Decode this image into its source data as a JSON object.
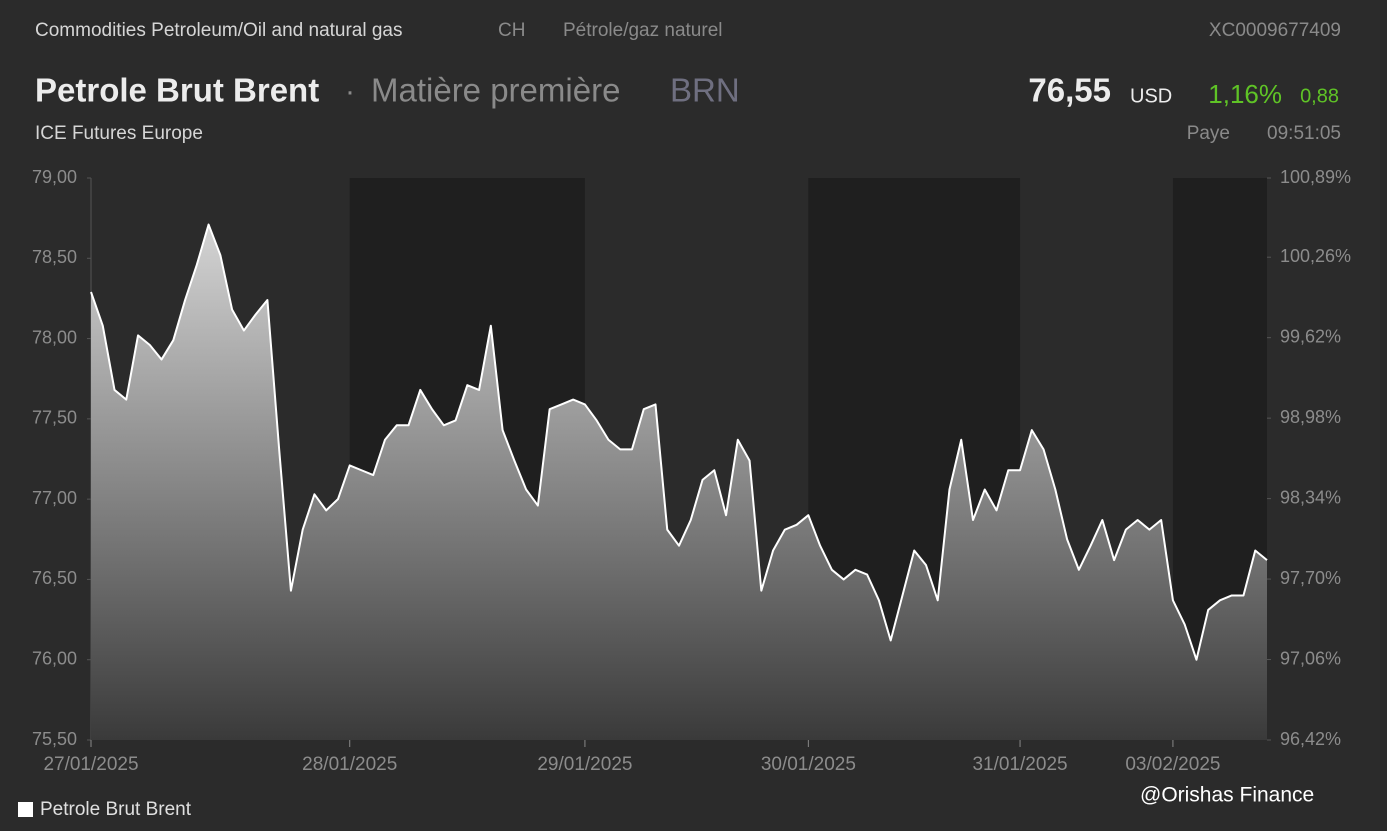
{
  "header": {
    "category": "Commodities Petroleum/Oil and natural gas",
    "country": "CH",
    "category_fr": "Pétrole/gaz naturel",
    "isin": "XC0009677409",
    "separator": "·",
    "asset_type": "Matière première",
    "symbol": "BRN",
    "price": "76,55",
    "currency": "USD",
    "change_pct": "1,16%",
    "change": "0,88",
    "exchange": "ICE Futures Europe",
    "status": "Paye",
    "time": "09:51:05",
    "watermark": "@Orishas Finance"
  },
  "chart_data": {
    "type": "area",
    "title": "Petrole Brut Brent",
    "x": [
      0,
      1,
      2,
      3,
      4,
      5,
      6,
      7,
      8,
      9,
      10,
      11,
      12,
      13,
      14,
      15,
      16,
      17,
      18,
      19,
      20,
      21,
      22,
      23,
      24,
      25,
      26,
      27,
      28,
      29,
      30,
      31,
      32,
      33,
      34,
      35,
      36,
      37,
      38,
      39,
      40,
      41,
      42,
      43,
      44,
      45,
      46,
      47,
      48,
      49,
      50,
      51,
      52,
      53,
      54,
      55,
      56,
      57,
      58,
      59,
      60,
      61,
      62,
      63,
      64,
      65,
      66,
      67,
      68,
      69,
      70,
      71,
      72,
      73,
      74,
      75,
      76,
      77,
      78,
      79,
      80,
      81,
      82,
      83,
      84,
      85,
      86,
      87,
      88,
      89,
      90,
      91,
      92,
      93,
      94,
      95,
      96,
      97,
      98,
      99,
      100
    ],
    "series": [
      {
        "name": "Petrole Brut Brent",
        "color": "#ffffff",
        "values": [
          78.29,
          78.08,
          77.68,
          77.62,
          78.02,
          77.96,
          77.87,
          77.99,
          78.24,
          78.46,
          78.71,
          78.52,
          78.18,
          78.05,
          78.15,
          78.24,
          77.31,
          76.43,
          76.81,
          77.03,
          76.93,
          77.0,
          77.21,
          77.18,
          77.15,
          77.37,
          77.46,
          77.46,
          77.68,
          77.56,
          77.46,
          77.49,
          77.71,
          77.68,
          78.08,
          77.43,
          77.24,
          77.06,
          76.96,
          77.56,
          77.59,
          77.62,
          77.59,
          77.49,
          77.37,
          77.31,
          77.31,
          77.56,
          77.59,
          76.81,
          76.71,
          76.87,
          77.12,
          77.18,
          76.9,
          77.37,
          77.24,
          76.43,
          76.68,
          76.81,
          76.84,
          76.9,
          76.71,
          76.56,
          76.5,
          76.56,
          76.53,
          76.37,
          76.12,
          76.4,
          76.68,
          76.59,
          76.37,
          77.06,
          77.37,
          76.87,
          77.06,
          76.93,
          77.18,
          77.18,
          77.43,
          77.31,
          77.06,
          76.75,
          76.56,
          76.71,
          76.87,
          76.62,
          76.81,
          76.87,
          76.81,
          76.87,
          76.37,
          76.22,
          76.0,
          76.31,
          76.37,
          76.4,
          76.4,
          76.68,
          76.62
        ]
      }
    ],
    "xlim": [
      0,
      100
    ],
    "xticks": [
      {
        "value": 0,
        "label": "27/01/2025"
      },
      {
        "value": 22,
        "label": "28/01/2025"
      },
      {
        "value": 42,
        "label": "29/01/2025"
      },
      {
        "value": 61,
        "label": "30/01/2025"
      },
      {
        "value": 79,
        "label": "31/01/2025"
      },
      {
        "value": 92,
        "label": "03/02/2025"
      }
    ],
    "ylim": [
      75.5,
      79
    ],
    "yticks": [
      {
        "value": 75.5,
        "label": "75,50"
      },
      {
        "value": 76,
        "label": "76,00"
      },
      {
        "value": 76.5,
        "label": "76,50"
      },
      {
        "value": 77,
        "label": "77,00"
      },
      {
        "value": 77.5,
        "label": "77,50"
      },
      {
        "value": 78,
        "label": "78,00"
      },
      {
        "value": 78.5,
        "label": "78,50"
      },
      {
        "value": 79,
        "label": "79,00"
      }
    ],
    "y2lim": [
      96.42,
      100.89
    ],
    "y2ticks": [
      {
        "value": 96.42,
        "label": "96,42%"
      },
      {
        "value": 97.06,
        "label": "97,06%"
      },
      {
        "value": 97.7,
        "label": "97,70%"
      },
      {
        "value": 98.34,
        "label": "98,34%"
      },
      {
        "value": 98.98,
        "label": "98,98%"
      },
      {
        "value": 99.62,
        "label": "99,62%"
      },
      {
        "value": 100.26,
        "label": "100,26%"
      },
      {
        "value": 100.89,
        "label": "100,89%"
      }
    ],
    "legend": "bottom-left"
  }
}
